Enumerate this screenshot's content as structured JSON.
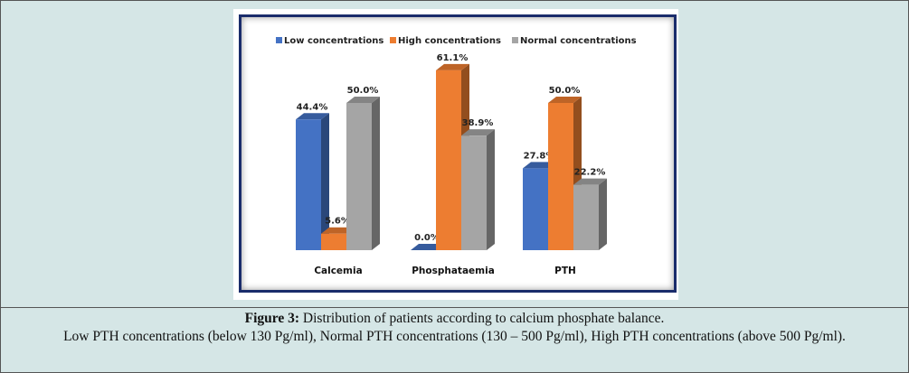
{
  "chart_data": {
    "type": "bar",
    "style": "3d-clustered",
    "categories": [
      "Calcemia",
      "Phosphataemia",
      "PTH"
    ],
    "series": [
      {
        "name": "Low concentrations",
        "color": "#4472c4",
        "values": [
          44.4,
          0.0,
          27.8
        ],
        "labels": [
          "44.4%",
          "0.0%",
          "27.8%"
        ]
      },
      {
        "name": "High concentrations",
        "color": "#ed7d31",
        "values": [
          5.6,
          61.1,
          50.0
        ],
        "labels": [
          "5.6%",
          "61.1%",
          "50.0%"
        ]
      },
      {
        "name": "Normal concentrations",
        "color": "#a5a5a5",
        "values": [
          50.0,
          38.9,
          22.2
        ],
        "labels": [
          "50.0%",
          "38.9%",
          "22.2%"
        ]
      }
    ],
    "legend": "top",
    "grid": false,
    "ylim": [
      0,
      100
    ]
  },
  "caption": {
    "label": "Figure 3:",
    "text": " Distribution of patients according to calcium phosphate balance.",
    "note": "Low PTH concentrations (below 130 Pg/ml), Normal PTH concentrations (130 – 500 Pg/ml), High PTH concentrations (above 500 Pg/ml)."
  }
}
